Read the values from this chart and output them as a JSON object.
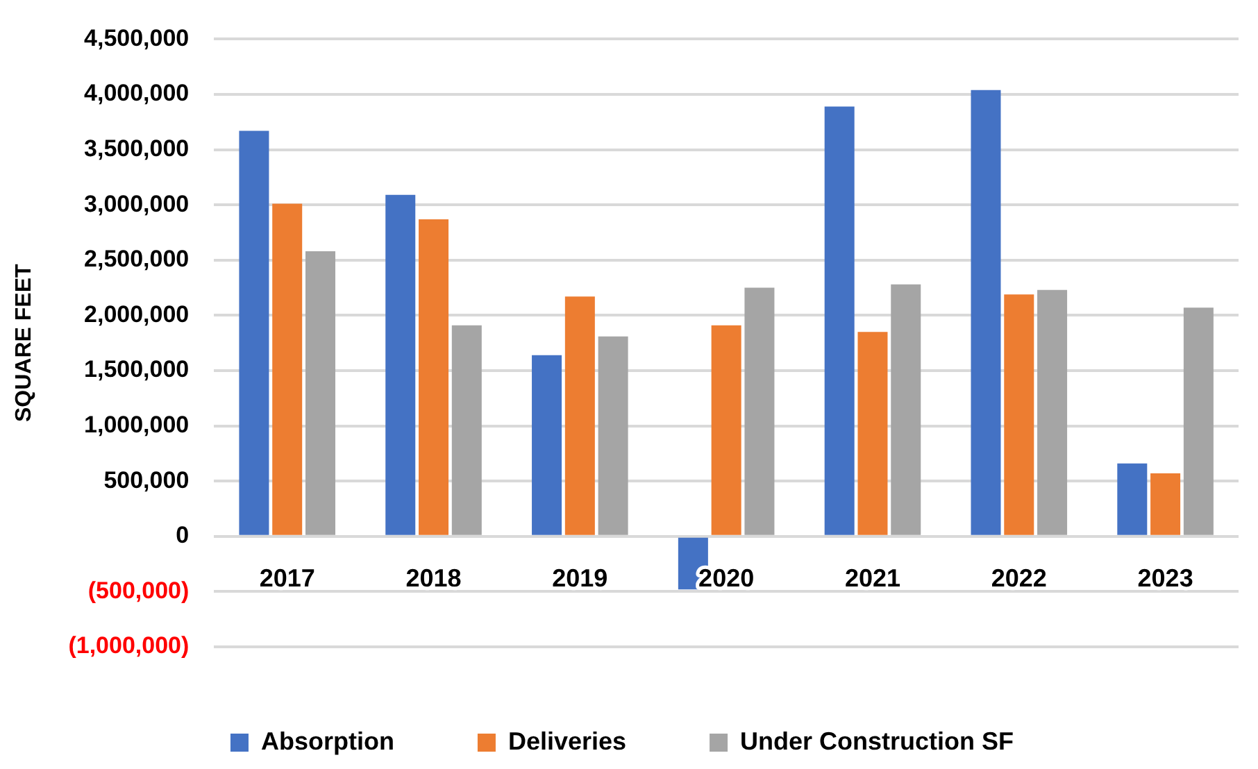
{
  "chart_data": {
    "type": "bar",
    "ylabel": "SQUARE FEET",
    "categories": [
      "2017",
      "2018",
      "2019",
      "2020",
      "2021",
      "2022",
      "2023"
    ],
    "series": [
      {
        "name": "Absorption",
        "color": "#4472c4",
        "values": [
          3670000,
          3090000,
          1640000,
          -480000,
          3890000,
          4040000,
          660000
        ]
      },
      {
        "name": "Deliveries",
        "color": "#ed7d31",
        "values": [
          3010000,
          2870000,
          2170000,
          1910000,
          1850000,
          2190000,
          570000
        ]
      },
      {
        "name": "Under Construction SF",
        "color": "#a5a5a5",
        "values": [
          2580000,
          1910000,
          1810000,
          2250000,
          2280000,
          2230000,
          2070000
        ]
      }
    ],
    "ylim": [
      -1000000,
      4500000
    ],
    "yticks": [
      {
        "value": -1000000,
        "label": "(1,000,000)"
      },
      {
        "value": -500000,
        "label": "(500,000)"
      },
      {
        "value": 0,
        "label": "0"
      },
      {
        "value": 500000,
        "label": "500,000"
      },
      {
        "value": 1000000,
        "label": "1,000,000"
      },
      {
        "value": 1500000,
        "label": "1,500,000"
      },
      {
        "value": 2000000,
        "label": "2,000,000"
      },
      {
        "value": 2500000,
        "label": "2,500,000"
      },
      {
        "value": 3000000,
        "label": "3,000,000"
      },
      {
        "value": 3500000,
        "label": "3,500,000"
      },
      {
        "value": 4000000,
        "label": "4,000,000"
      },
      {
        "value": 4500000,
        "label": "4,500,000"
      }
    ],
    "grid": "y",
    "legend": "bottom"
  }
}
